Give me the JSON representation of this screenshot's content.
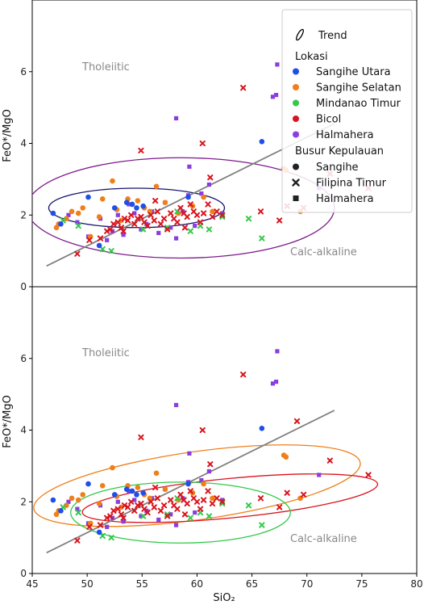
{
  "colors": {
    "trend": "#808080",
    "sangihe_utara": "#1f4fe8",
    "sangihe_selatan": "#f07f1a",
    "mindanao_timur": "#33c94a",
    "bicol": "#d9141e",
    "halmahera": "#8a3ee0",
    "ellipse_top_sangihe": "#16146e",
    "ellipse_top_halmahera": "#7d1a8c",
    "ellipse_bottom_selatan": "#f07f1a",
    "ellipse_bottom_bicol": "#d9141e",
    "ellipse_bottom_mindanao": "#33c94a"
  },
  "chart_data": [
    {
      "type": "scatter",
      "panel": "top",
      "xlim": [
        45,
        80
      ],
      "ylim": [
        0,
        8
      ],
      "yticks": [
        0,
        2,
        4,
        6
      ],
      "ylabel": "FeO*/MgO",
      "region_labels": {
        "upper": "Tholeiitic",
        "lower": "Calc-alkaline"
      },
      "legend": {
        "trend": "Trend",
        "lokasi_title": "Lokasi",
        "lokasi": [
          "Sangihe Utara",
          "Sangihe Selatan",
          "Mindanao Timur",
          "Bicol",
          "Halmahera"
        ],
        "busur_title": "Busur Kepulauan",
        "busur": [
          "Sangihe",
          "Filipina Timur",
          "Halmahera"
        ]
      },
      "ellipses": [
        {
          "name": "Sangihe",
          "cx": 54.5,
          "cy": 2.2,
          "rx": 8.0,
          "ry": 0.55,
          "angle": 0
        },
        {
          "name": "Halmahera",
          "cx": 58.5,
          "cy": 2.2,
          "rx": 14.0,
          "ry": 1.4,
          "angle": 0
        }
      ]
    },
    {
      "type": "scatter",
      "panel": "bottom",
      "xlim": [
        45,
        80
      ],
      "ylim": [
        0,
        8
      ],
      "xticks": [
        45,
        50,
        55,
        60,
        65,
        70,
        75,
        80
      ],
      "yticks": [
        0,
        2,
        4,
        6
      ],
      "xlabel": "SiO₂",
      "ylabel": "FeO*/MgO",
      "region_labels": {
        "upper": "Tholeiitic",
        "lower": "Calc-alkaline"
      },
      "ellipses": [
        {
          "name": "Sangihe Selatan",
          "cx": 60.0,
          "cy": 2.45,
          "rx": 15.0,
          "ry": 0.95,
          "angle": 8
        },
        {
          "name": "Bicol",
          "cx": 63.0,
          "cy": 2.1,
          "rx": 13.5,
          "ry": 0.55,
          "angle": 5.5
        },
        {
          "name": "Mindanao Timur",
          "cx": 58.5,
          "cy": 1.7,
          "rx": 10.0,
          "ry": 0.85,
          "angle": 0
        }
      ]
    }
  ],
  "trend_line": {
    "x": [
      46.3,
      72.5
    ],
    "y": [
      0.58,
      4.55
    ]
  },
  "points": {
    "sangihe_utara": {
      "marker": "circle",
      "x": [
        46.9,
        47.6,
        50.1,
        51.1,
        52.5,
        53.6,
        54.1,
        54.5,
        55.1,
        59.2,
        65.9
      ],
      "y": [
        2.05,
        1.75,
        2.5,
        1.15,
        2.2,
        2.35,
        2.3,
        2.2,
        2.25,
        2.5,
        4.05
      ]
    },
    "sangihe_selatan": {
      "marker": "circle",
      "x": [
        47.2,
        47.4,
        48.1,
        48.6,
        49.2,
        49.6,
        50.3,
        51.1,
        51.4,
        52.3,
        52.7,
        53.1,
        53.7,
        54.6,
        55.2,
        55.7,
        56.3,
        57.1,
        58.3,
        59.6,
        60.6,
        61.4,
        67.9,
        68.1,
        69.4
      ],
      "y": [
        1.65,
        1.75,
        1.9,
        2.1,
        2.05,
        2.2,
        1.4,
        1.95,
        2.45,
        2.95,
        2.15,
        1.85,
        2.45,
        2.4,
        2.2,
        2.1,
        2.8,
        2.35,
        2.05,
        2.25,
        2.5,
        2.1,
        3.3,
        3.25,
        2.1
      ]
    },
    "mindanao_timur": {
      "marker": "x",
      "x": [
        47.8,
        49.2,
        51.4,
        52.2,
        55.1,
        57.3,
        58.2,
        59.4,
        60.3,
        61.1,
        62.3,
        64.7,
        65.9
      ],
      "y": [
        1.85,
        1.7,
        1.05,
        1.0,
        1.6,
        1.65,
        2.1,
        1.55,
        1.7,
        1.6,
        1.95,
        1.9,
        1.35
      ]
    },
    "bicol": {
      "marker": "x",
      "x": [
        49.1,
        50.2,
        51.2,
        51.8,
        52.1,
        52.4,
        52.8,
        53.1,
        53.4,
        53.7,
        54.0,
        54.3,
        54.6,
        54.9,
        55.2,
        55.5,
        55.8,
        56.1,
        56.4,
        56.7,
        57.0,
        57.3,
        57.6,
        57.9,
        58.2,
        58.5,
        58.8,
        59.1,
        59.4,
        59.7,
        60.0,
        60.3,
        60.6,
        61.0,
        61.4,
        61.8,
        62.3,
        54.9,
        60.5,
        64.2,
        65.8,
        67.5,
        68.2,
        69.1,
        69.7,
        72.1,
        75.6,
        53.3,
        56.2,
        58.9,
        61.2
      ],
      "y": [
        0.92,
        1.3,
        1.35,
        1.55,
        1.6,
        1.75,
        1.8,
        1.65,
        1.9,
        1.85,
        2.0,
        1.75,
        1.9,
        1.95,
        1.8,
        1.7,
        2.0,
        1.85,
        2.1,
        1.75,
        1.9,
        1.6,
        2.05,
        1.9,
        1.8,
        2.2,
        2.05,
        1.95,
        2.3,
        2.1,
        2.0,
        1.8,
        2.05,
        2.3,
        1.95,
        2.1,
        2.0,
        3.8,
        4.0,
        5.55,
        2.1,
        1.85,
        2.25,
        4.25,
        2.2,
        3.15,
        2.75,
        1.55,
        2.4,
        1.65,
        3.05
      ]
    },
    "halmahera": {
      "marker": "square",
      "x": [
        48.3,
        49.1,
        50.1,
        51.2,
        51.8,
        52.3,
        52.8,
        53.3,
        53.8,
        54.3,
        54.9,
        55.4,
        55.9,
        56.5,
        57.1,
        57.6,
        58.1,
        58.7,
        59.2,
        59.8,
        60.4,
        61.1,
        62.3,
        58.1,
        59.3,
        66.9,
        67.2,
        67.3,
        71.1
      ],
      "y": [
        2.0,
        1.8,
        1.4,
        1.9,
        1.3,
        1.55,
        2.0,
        1.45,
        2.3,
        2.05,
        1.6,
        1.75,
        2.1,
        1.5,
        2.35,
        1.65,
        1.35,
        2.1,
        2.55,
        1.7,
        2.6,
        2.85,
        2.05,
        4.7,
        3.35,
        5.3,
        5.35,
        6.2,
        2.75
      ]
    }
  }
}
